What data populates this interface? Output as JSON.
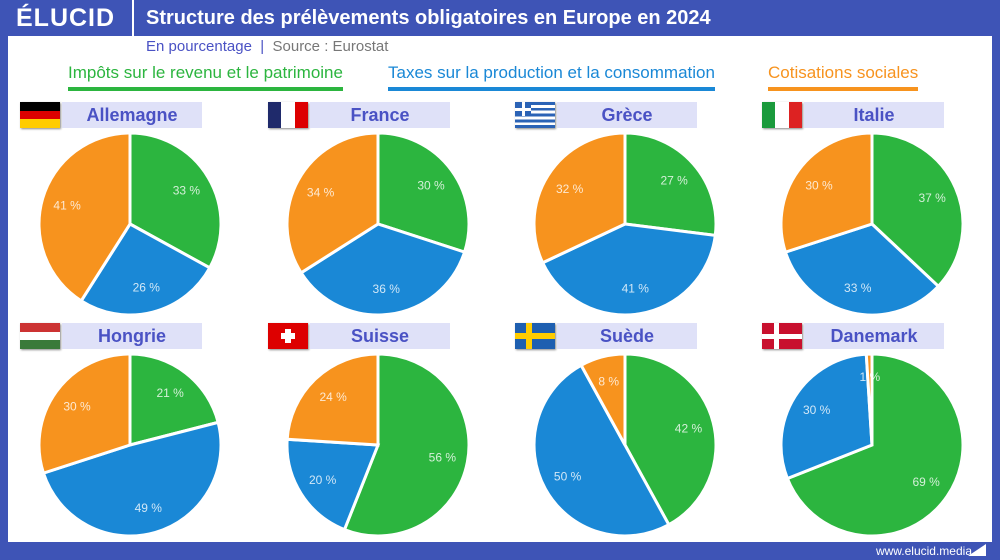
{
  "header": {
    "logo": "ÉLUCID",
    "title": "Structure des prélèvements obligatoires en Europe en 2024",
    "subtitle": "En pourcentage",
    "source": "Source : Eurostat"
  },
  "footer": {
    "url": "www.elucid.media"
  },
  "colors": {
    "header": "#3e54b6",
    "green": "#2cb53f",
    "blue": "#1a88d6",
    "orange": "#f7931e"
  },
  "chart_data": {
    "type": "pie",
    "legend": [
      {
        "name": "Impôts sur le revenu et le patrimoine",
        "color": "#2cb53f"
      },
      {
        "name": "Taxes sur la production et la consommation",
        "color": "#1a88d6"
      },
      {
        "name": "Cotisations sociales",
        "color": "#f7931e"
      }
    ],
    "pies": [
      {
        "country": "Allemagne",
        "flag": "germany",
        "values": [
          33,
          26,
          41
        ]
      },
      {
        "country": "France",
        "flag": "france",
        "values": [
          30,
          36,
          34
        ]
      },
      {
        "country": "Grèce",
        "flag": "greece",
        "values": [
          27,
          41,
          32
        ]
      },
      {
        "country": "Italie",
        "flag": "italy",
        "values": [
          37,
          33,
          30
        ]
      },
      {
        "country": "Hongrie",
        "flag": "hungary",
        "values": [
          21,
          49,
          30
        ]
      },
      {
        "country": "Suisse",
        "flag": "switzerland",
        "values": [
          56,
          20,
          24
        ]
      },
      {
        "country": "Suède",
        "flag": "sweden",
        "values": [
          42,
          50,
          8
        ]
      },
      {
        "country": "Danemark",
        "flag": "denmark",
        "values": [
          69,
          30,
          1
        ]
      }
    ]
  }
}
